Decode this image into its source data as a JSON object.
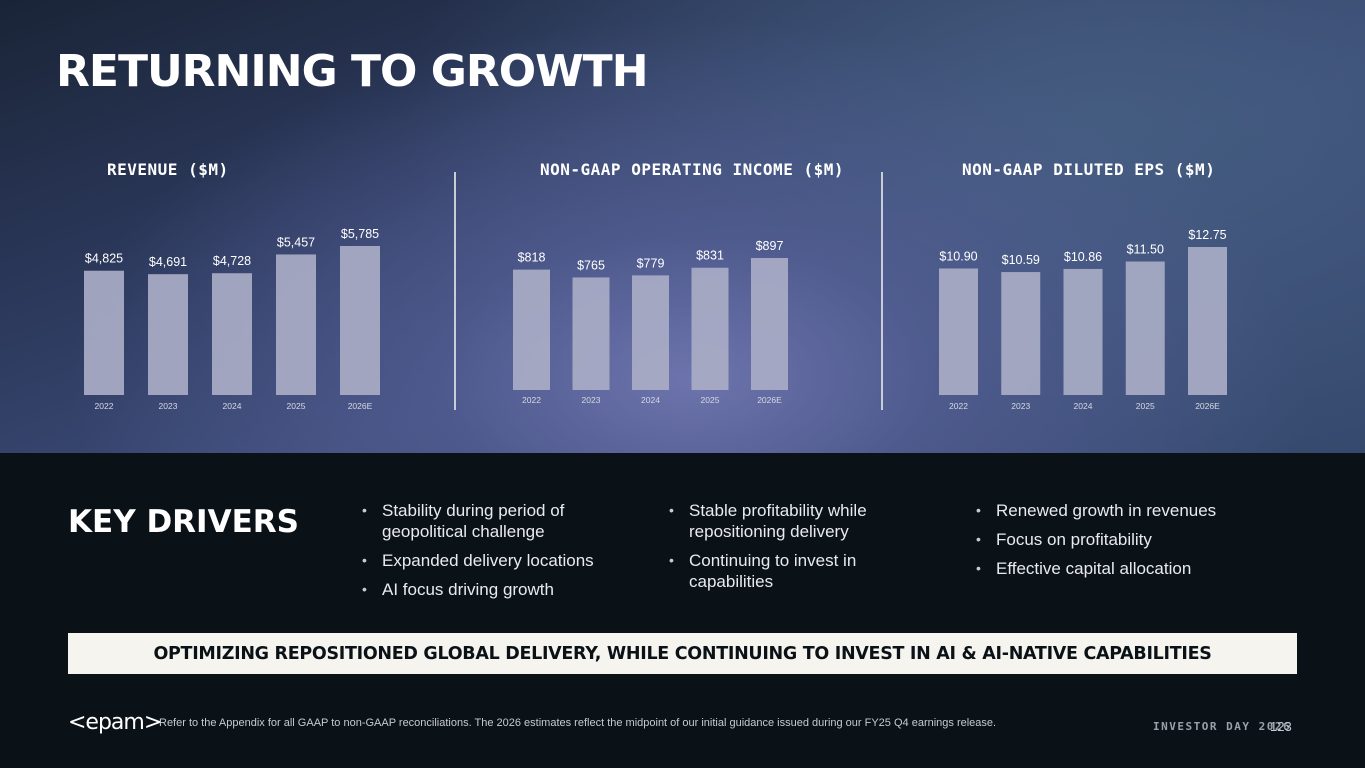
{
  "title": "RETURNING TO GROWTH",
  "chart_data": [
    {
      "type": "bar",
      "title": "REVENUE ($M)",
      "categories": [
        "2022",
        "2023",
        "2024",
        "2025",
        "2026E"
      ],
      "values": [
        4825,
        4691,
        4728,
        5457,
        5785
      ],
      "value_labels": [
        "$4,825",
        "$4,691",
        "$4,728",
        "$5,457",
        "$5,785"
      ],
      "xlabel": "",
      "ylabel": "",
      "ylim": [
        0,
        5785
      ]
    },
    {
      "type": "bar",
      "title": "NON-GAAP OPERATING INCOME ($M)",
      "categories": [
        "2022",
        "2023",
        "2024",
        "2025",
        "2026E"
      ],
      "values": [
        818,
        765,
        779,
        831,
        897
      ],
      "value_labels": [
        "$818",
        "$765",
        "$779",
        "$831",
        "$897"
      ],
      "xlabel": "",
      "ylabel": "",
      "ylim": [
        0,
        897
      ]
    },
    {
      "type": "bar",
      "title": "NON-GAAP DILUTED EPS ($M)",
      "categories": [
        "2022",
        "2023",
        "2024",
        "2025",
        "2026E"
      ],
      "values": [
        10.9,
        10.59,
        10.86,
        11.5,
        12.75
      ],
      "value_labels": [
        "$10.90",
        "$10.59",
        "$10.86",
        "$11.50",
        "$12.75"
      ],
      "xlabel": "",
      "ylabel": "",
      "ylim": [
        0,
        12.75
      ]
    }
  ],
  "colors": {
    "bar": "#a9adc5",
    "bar_label": "#ffffff",
    "tick_label": "#d6d9e4"
  },
  "key_drivers": {
    "title": "KEY DRIVERS",
    "columns": [
      [
        "Stability during period of geopolitical challenge",
        "Expanded delivery locations",
        "AI focus driving growth"
      ],
      [
        "Stable profitability while repositioning delivery",
        "Continuing to invest in capabilities"
      ],
      [
        "Renewed growth in revenues",
        "Focus on profitability",
        "Effective capital allocation"
      ]
    ]
  },
  "banner": "OPTIMIZING REPOSITIONED GLOBAL DELIVERY, WHILE CONTINUING TO INVEST IN AI & AI-NATIVE CAPABILITIES",
  "footer": {
    "logo": "<epam>",
    "note": "Refer to the Appendix for all GAAP to non-GAAP reconciliations. The 2026 estimates reflect the midpoint of our initial guidance issued during our FY25 Q4 earnings release.",
    "event": "INVESTOR DAY 2026",
    "page": "123"
  }
}
